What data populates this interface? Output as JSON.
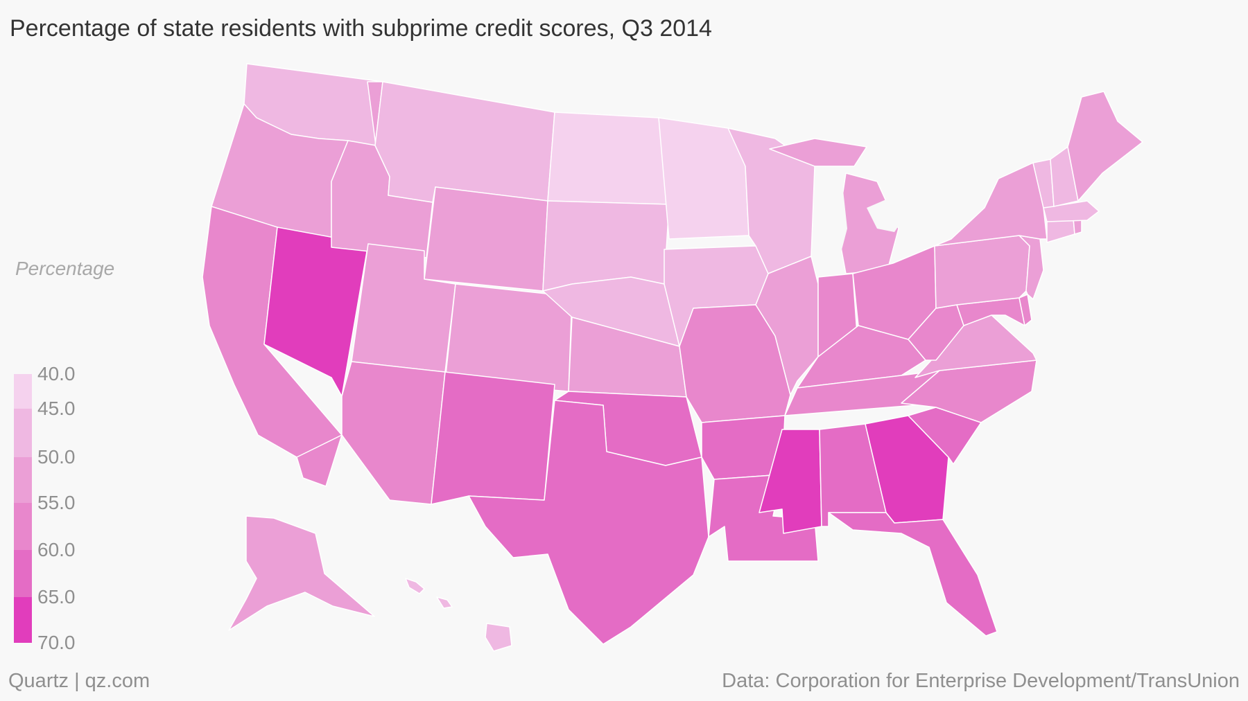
{
  "title": "Percentage of state residents with subprime credit scores, Q3 2014",
  "legend": {
    "title": "Percentage",
    "ticks": [
      "40.0",
      "45.0",
      "50.0",
      "55.0",
      "60.0",
      "65.0",
      "70.0"
    ],
    "bins": [
      {
        "from": 40,
        "to": 45,
        "color": "#f5d2ee"
      },
      {
        "from": 45,
        "to": 50,
        "color": "#efb8e2"
      },
      {
        "from": 50,
        "to": 55,
        "color": "#eb9fd6"
      },
      {
        "from": 55,
        "to": 60,
        "color": "#e887cc"
      },
      {
        "from": 60,
        "to": 65,
        "color": "#e46cc5"
      },
      {
        "from": 65,
        "to": 70,
        "color": "#e13dbc"
      }
    ]
  },
  "footer": {
    "credit": "Quartz | qz.com",
    "source": "Data: Corporation for Enterprise Development/TransUnion"
  },
  "map_data": {
    "type": "choropleth",
    "region": "United States",
    "colors": {
      "background": "#f8f8f8",
      "border": "#ffffff"
    },
    "states": [
      {
        "code": "WA",
        "bin": 1
      },
      {
        "code": "OR",
        "bin": 2
      },
      {
        "code": "CA",
        "bin": 3
      },
      {
        "code": "NV",
        "bin": 5
      },
      {
        "code": "ID",
        "bin": 2
      },
      {
        "code": "MT",
        "bin": 1
      },
      {
        "code": "WY",
        "bin": 2
      },
      {
        "code": "UT",
        "bin": 2
      },
      {
        "code": "AZ",
        "bin": 3
      },
      {
        "code": "CO",
        "bin": 2
      },
      {
        "code": "NM",
        "bin": 4
      },
      {
        "code": "ND",
        "bin": 0
      },
      {
        "code": "SD",
        "bin": 1
      },
      {
        "code": "NE",
        "bin": 1
      },
      {
        "code": "KS",
        "bin": 2
      },
      {
        "code": "OK",
        "bin": 4
      },
      {
        "code": "TX",
        "bin": 4
      },
      {
        "code": "MN",
        "bin": 0
      },
      {
        "code": "IA",
        "bin": 1
      },
      {
        "code": "MO",
        "bin": 3
      },
      {
        "code": "AR",
        "bin": 4
      },
      {
        "code": "LA",
        "bin": 4
      },
      {
        "code": "WI",
        "bin": 1
      },
      {
        "code": "IL",
        "bin": 2
      },
      {
        "code": "MI",
        "bin": 2
      },
      {
        "code": "IN",
        "bin": 3
      },
      {
        "code": "OH",
        "bin": 3
      },
      {
        "code": "KY",
        "bin": 3
      },
      {
        "code": "TN",
        "bin": 3
      },
      {
        "code": "MS",
        "bin": 5
      },
      {
        "code": "AL",
        "bin": 4
      },
      {
        "code": "GA",
        "bin": 5
      },
      {
        "code": "FL",
        "bin": 4
      },
      {
        "code": "SC",
        "bin": 4
      },
      {
        "code": "NC",
        "bin": 3
      },
      {
        "code": "VA",
        "bin": 2
      },
      {
        "code": "WV",
        "bin": 3
      },
      {
        "code": "MD",
        "bin": 3
      },
      {
        "code": "DE",
        "bin": 3
      },
      {
        "code": "PA",
        "bin": 2
      },
      {
        "code": "NJ",
        "bin": 2
      },
      {
        "code": "NY",
        "bin": 2
      },
      {
        "code": "CT",
        "bin": 1
      },
      {
        "code": "RI",
        "bin": 2
      },
      {
        "code": "MA",
        "bin": 1
      },
      {
        "code": "VT",
        "bin": 1
      },
      {
        "code": "NH",
        "bin": 1
      },
      {
        "code": "ME",
        "bin": 2
      },
      {
        "code": "AK",
        "bin": 2
      },
      {
        "code": "HI",
        "bin": 1
      }
    ]
  }
}
